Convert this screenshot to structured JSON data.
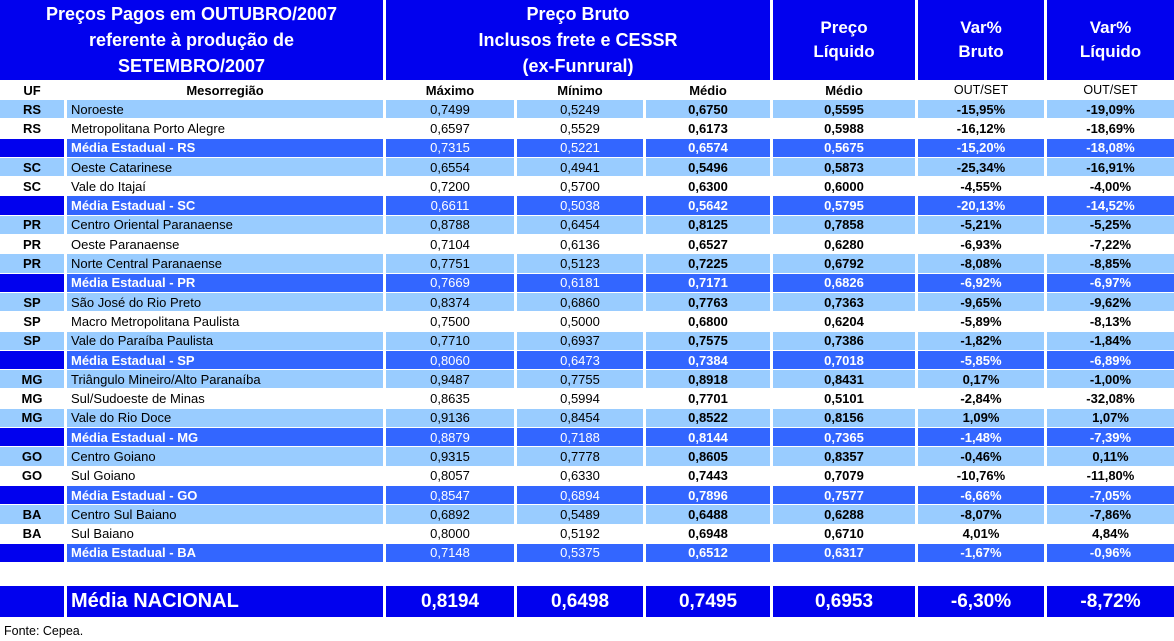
{
  "header": {
    "title_left": "Preços Pagos em OUTUBRO/2007\nreferente à produção de\nSETEMBRO/2007",
    "preco_bruto": "Preço Bruto\nInclusos frete e CESSR\n(ex-Funrural)",
    "preco_liquido": "Preço\nLíquido",
    "var_bruto": "Var%\nBruto",
    "var_liquido": "Var%\nLíquido"
  },
  "colors": {
    "header_blue": "#0101ee",
    "state_average_blue": "#3366ff",
    "row_light_blue": "#99ccff",
    "row_white": "#ffffff",
    "text_white": "#ffffff",
    "text_black": "#000000"
  },
  "chart_data": {
    "type": "table",
    "title": "Preços Pagos em OUTUBRO/2007 referente à produção de SETEMBRO/2007",
    "columns": [
      "UF",
      "Mesorregião",
      "Máximo",
      "Mínimo",
      "Médio",
      "Médio",
      "OUT/SET",
      "OUT/SET"
    ],
    "column_groups": [
      "Preço Bruto Inclusos frete e CESSR (ex-Funrural)",
      "Preço Líquido",
      "Var% Bruto",
      "Var% Líquido"
    ],
    "rows": [
      {
        "uf": "RS",
        "name": "Noroeste",
        "max": "0,7499",
        "min": "0,5249",
        "med": "0,6750",
        "liq": "0,5595",
        "vb": "-15,95%",
        "vl": "-19,09%",
        "kind": "light"
      },
      {
        "uf": "RS",
        "name": "Metropolitana Porto Alegre",
        "max": "0,6597",
        "min": "0,5529",
        "med": "0,6173",
        "liq": "0,5988",
        "vb": "-16,12%",
        "vl": "-18,69%",
        "kind": "white"
      },
      {
        "uf": "",
        "name": "Média Estadual - RS",
        "max": "0,7315",
        "min": "0,5221",
        "med": "0,6574",
        "liq": "0,5675",
        "vb": "-15,20%",
        "vl": "-18,08%",
        "kind": "avg"
      },
      {
        "uf": "SC",
        "name": "Oeste Catarinese",
        "max": "0,6554",
        "min": "0,4941",
        "med": "0,5496",
        "liq": "0,5873",
        "vb": "-25,34%",
        "vl": "-16,91%",
        "kind": "light"
      },
      {
        "uf": "SC",
        "name": "Vale do Itajaí",
        "max": "0,7200",
        "min": "0,5700",
        "med": "0,6300",
        "liq": "0,6000",
        "vb": "-4,55%",
        "vl": "-4,00%",
        "kind": "white"
      },
      {
        "uf": "",
        "name": "Média Estadual - SC",
        "max": "0,6611",
        "min": "0,5038",
        "med": "0,5642",
        "liq": "0,5795",
        "vb": "-20,13%",
        "vl": "-14,52%",
        "kind": "avg"
      },
      {
        "uf": "PR",
        "name": "Centro Oriental Paranaense",
        "max": "0,8788",
        "min": "0,6454",
        "med": "0,8125",
        "liq": "0,7858",
        "vb": "-5,21%",
        "vl": "-5,25%",
        "kind": "light"
      },
      {
        "uf": "PR",
        "name": "Oeste Paranaense",
        "max": "0,7104",
        "min": "0,6136",
        "med": "0,6527",
        "liq": "0,6280",
        "vb": "-6,93%",
        "vl": "-7,22%",
        "kind": "white"
      },
      {
        "uf": "PR",
        "name": "Norte Central Paranaense",
        "max": "0,7751",
        "min": "0,5123",
        "med": "0,7225",
        "liq": "0,6792",
        "vb": "-8,08%",
        "vl": "-8,85%",
        "kind": "light"
      },
      {
        "uf": "",
        "name": "Média Estadual - PR",
        "max": "0,7669",
        "min": "0,6181",
        "med": "0,7171",
        "liq": "0,6826",
        "vb": "-6,92%",
        "vl": "-6,97%",
        "kind": "avg"
      },
      {
        "uf": "SP",
        "name": "São José do Rio Preto",
        "max": "0,8374",
        "min": "0,6860",
        "med": "0,7763",
        "liq": "0,7363",
        "vb": "-9,65%",
        "vl": "-9,62%",
        "kind": "light"
      },
      {
        "uf": "SP",
        "name": "Macro Metropolitana Paulista",
        "max": "0,7500",
        "min": "0,5000",
        "med": "0,6800",
        "liq": "0,6204",
        "vb": "-5,89%",
        "vl": "-8,13%",
        "kind": "white"
      },
      {
        "uf": "SP",
        "name": "Vale do Paraíba Paulista",
        "max": "0,7710",
        "min": "0,6937",
        "med": "0,7575",
        "liq": "0,7386",
        "vb": "-1,82%",
        "vl": "-1,84%",
        "kind": "light"
      },
      {
        "uf": "",
        "name": "Média Estadual - SP",
        "max": "0,8060",
        "min": "0,6473",
        "med": "0,7384",
        "liq": "0,7018",
        "vb": "-5,85%",
        "vl": "-6,89%",
        "kind": "avg"
      },
      {
        "uf": "MG",
        "name": "Triângulo Mineiro/Alto Paranaíba",
        "max": "0,9487",
        "min": "0,7755",
        "med": "0,8918",
        "liq": "0,8431",
        "vb": "0,17%",
        "vl": "-1,00%",
        "kind": "light"
      },
      {
        "uf": "MG",
        "name": "Sul/Sudoeste de Minas",
        "max": "0,8635",
        "min": "0,5994",
        "med": "0,7701",
        "liq": "0,5101",
        "vb": "-2,84%",
        "vl": "-32,08%",
        "kind": "white"
      },
      {
        "uf": "MG",
        "name": "Vale do Rio Doce",
        "max": "0,9136",
        "min": "0,8454",
        "med": "0,8522",
        "liq": "0,8156",
        "vb": "1,09%",
        "vl": "1,07%",
        "kind": "light"
      },
      {
        "uf": "",
        "name": "Média Estadual - MG",
        "max": "0,8879",
        "min": "0,7188",
        "med": "0,8144",
        "liq": "0,7365",
        "vb": "-1,48%",
        "vl": "-7,39%",
        "kind": "avg"
      },
      {
        "uf": "GO",
        "name": "Centro Goiano",
        "max": "0,9315",
        "min": "0,7778",
        "med": "0,8605",
        "liq": "0,8357",
        "vb": "-0,46%",
        "vl": "0,11%",
        "kind": "light"
      },
      {
        "uf": "GO",
        "name": "Sul Goiano",
        "max": "0,8057",
        "min": "0,6330",
        "med": "0,7443",
        "liq": "0,7079",
        "vb": "-10,76%",
        "vl": "-11,80%",
        "kind": "white"
      },
      {
        "uf": "",
        "name": "Média Estadual - GO",
        "max": "0,8547",
        "min": "0,6894",
        "med": "0,7896",
        "liq": "0,7577",
        "vb": "-6,66%",
        "vl": "-7,05%",
        "kind": "avg"
      },
      {
        "uf": "BA",
        "name": "Centro Sul Baiano",
        "max": "0,6892",
        "min": "0,5489",
        "med": "0,6488",
        "liq": "0,6288",
        "vb": "-8,07%",
        "vl": "-7,86%",
        "kind": "light"
      },
      {
        "uf": "BA",
        "name": "Sul Baiano",
        "max": "0,8000",
        "min": "0,5192",
        "med": "0,6948",
        "liq": "0,6710",
        "vb": "4,01%",
        "vl": "4,84%",
        "kind": "white"
      },
      {
        "uf": "",
        "name": "Média Estadual - BA",
        "max": "0,7148",
        "min": "0,5375",
        "med": "0,6512",
        "liq": "0,6317",
        "vb": "-1,67%",
        "vl": "-0,96%",
        "kind": "avg"
      }
    ]
  },
  "national": {
    "label": "Média NACIONAL",
    "max": "0,8194",
    "min": "0,6498",
    "med": "0,7495",
    "liq": "0,6953",
    "vb": "-6,30%",
    "vl": "-8,72%"
  },
  "footer": {
    "source": "Fonte: Cepea."
  }
}
